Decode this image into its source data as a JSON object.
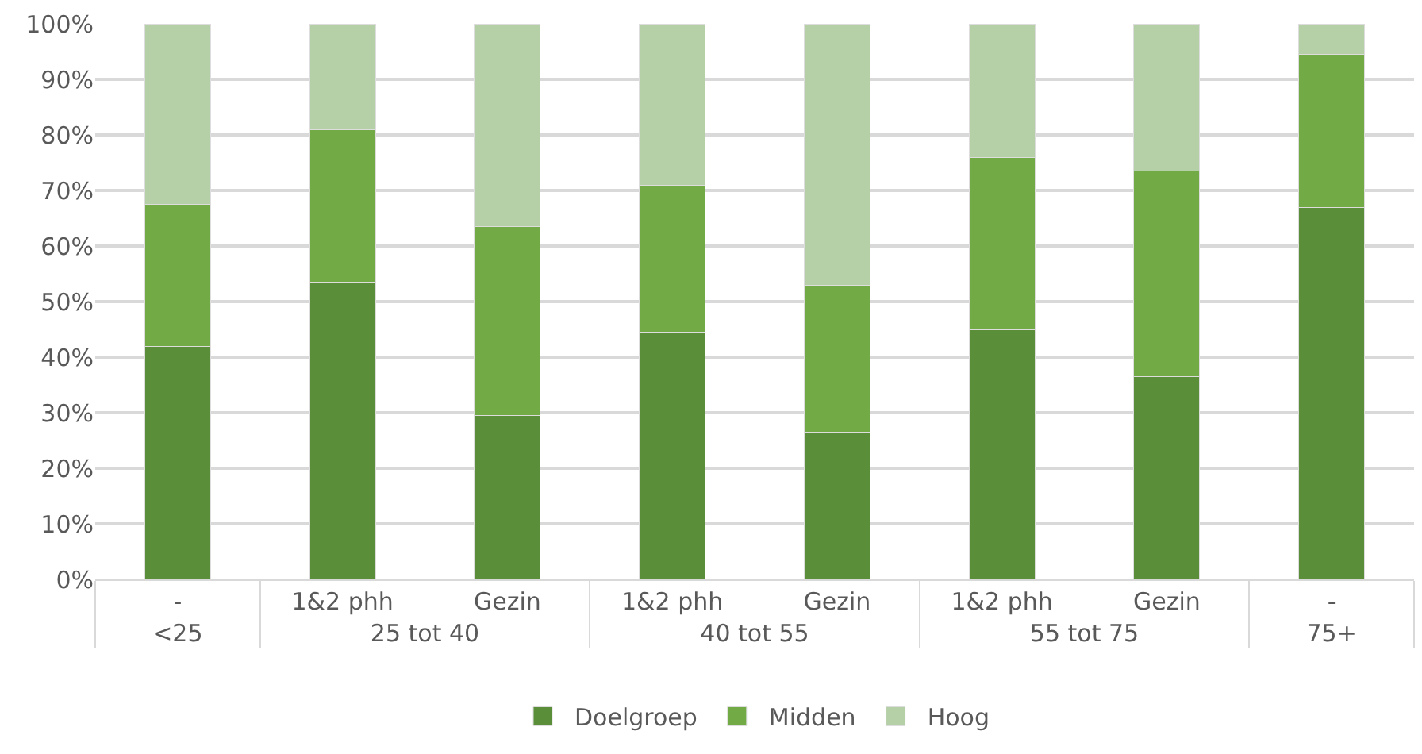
{
  "chart_data": {
    "type": "bar",
    "stacked": true,
    "categories": [
      [
        "<25",
        "-"
      ],
      [
        "25 tot 40",
        "1&2 phh"
      ],
      [
        null,
        "Gezin"
      ],
      [
        "40 tot 55",
        "1&2 phh"
      ],
      [
        null,
        "Gezin"
      ],
      [
        "55 tot 75",
        "1&2 phh"
      ],
      [
        null,
        "Gezin"
      ],
      [
        "75+",
        "-"
      ]
    ],
    "series": [
      {
        "name": "Doelgroep",
        "color": "#5b8e38",
        "values": [
          42,
          53.5,
          29.5,
          44.5,
          26.5,
          45,
          36.5,
          67
        ]
      },
      {
        "name": "Midden",
        "color": "#72ab46",
        "values": [
          25.5,
          27.5,
          34,
          26.5,
          26.5,
          31,
          37,
          27.5
        ]
      },
      {
        "name": "Hoog",
        "color": "#b5cfa7",
        "values": [
          32.5,
          19,
          36.5,
          29,
          47,
          24,
          26.5,
          5.5
        ]
      }
    ],
    "ylim": [
      0,
      100
    ],
    "yticks": [
      {
        "value": 0,
        "label": "0%"
      },
      {
        "value": 10,
        "label": "10%"
      },
      {
        "value": 20,
        "label": "20%"
      },
      {
        "value": 30,
        "label": "30%"
      },
      {
        "value": 40,
        "label": "40%"
      },
      {
        "value": 50,
        "label": "50%"
      },
      {
        "value": 60,
        "label": "60%"
      },
      {
        "value": 70,
        "label": "70%"
      },
      {
        "value": 80,
        "label": "80%"
      },
      {
        "value": 90,
        "label": "90%"
      },
      {
        "value": 100,
        "label": "100%"
      }
    ],
    "grid": "y",
    "legend": "bottom"
  }
}
